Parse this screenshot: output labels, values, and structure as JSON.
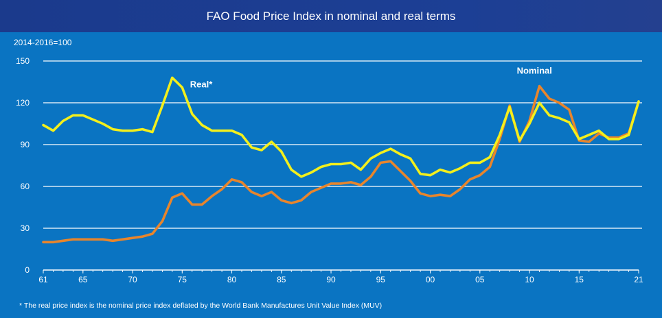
{
  "header": {
    "title": "FAO Food Price Index in nominal and real terms"
  },
  "unit_label": "2014-2016=100",
  "footnote": "* The real price index is the nominal price index deflated by the World Bank Manufactures Unit Value Index (MUV)",
  "colors": {
    "background": "#0a74c2",
    "title_bar": "#1c3f95",
    "real": "#f3ef1c",
    "nominal": "#e8852c",
    "grid": "#ffffff"
  },
  "chart_data": {
    "type": "line",
    "title": "FAO Food Price Index in nominal and real terms",
    "ylabel": "2014-2016=100",
    "xlabel": "",
    "xlim": [
      1961,
      2021
    ],
    "ylim": [
      0,
      150
    ],
    "yticks": [
      "0",
      "30",
      "60",
      "90",
      "120",
      "150"
    ],
    "xticks": [
      "61",
      "65",
      "70",
      "75",
      "80",
      "85",
      "90",
      "95",
      "00",
      "05",
      "10",
      "15",
      "21"
    ],
    "grid": "horizontal",
    "legend": "inline labels",
    "x": [
      1961,
      1962,
      1963,
      1964,
      1965,
      1966,
      1967,
      1968,
      1969,
      1970,
      1971,
      1972,
      1973,
      1974,
      1975,
      1976,
      1977,
      1978,
      1979,
      1980,
      1981,
      1982,
      1983,
      1984,
      1985,
      1986,
      1987,
      1988,
      1989,
      1990,
      1991,
      1992,
      1993,
      1994,
      1995,
      1996,
      1997,
      1998,
      1999,
      2000,
      2001,
      2002,
      2003,
      2004,
      2005,
      2006,
      2007,
      2008,
      2009,
      2010,
      2011,
      2012,
      2013,
      2014,
      2015,
      2016,
      2017,
      2018,
      2019,
      2020,
      2021
    ],
    "series": [
      {
        "name": "Real*",
        "label": "Real*",
        "values": [
          104,
          100,
          107,
          111,
          111,
          108,
          105,
          101,
          100,
          100,
          101,
          99,
          118,
          138,
          131,
          112,
          104,
          100,
          100,
          100,
          97,
          88,
          86,
          92,
          85,
          72,
          67,
          70,
          74,
          76,
          76,
          77,
          72,
          80,
          84,
          87,
          83,
          80,
          69,
          68,
          72,
          70,
          73,
          77,
          77,
          81,
          97,
          117,
          93,
          105,
          120,
          111,
          109,
          106,
          94,
          97,
          100,
          94,
          94,
          97,
          121
        ]
      },
      {
        "name": "Nominal",
        "label": "Nominal",
        "values": [
          20,
          20,
          21,
          22,
          22,
          22,
          22,
          21,
          22,
          23,
          24,
          26,
          35,
          52,
          55,
          47,
          47,
          53,
          58,
          65,
          63,
          56,
          53,
          56,
          50,
          48,
          50,
          56,
          59,
          62,
          62,
          63,
          61,
          67,
          77,
          78,
          71,
          64,
          55,
          53,
          54,
          53,
          58,
          65,
          68,
          74,
          94,
          118,
          92,
          107,
          132,
          123,
          120,
          115,
          93,
          92,
          98,
          95,
          95,
          98,
          121
        ]
      }
    ]
  }
}
